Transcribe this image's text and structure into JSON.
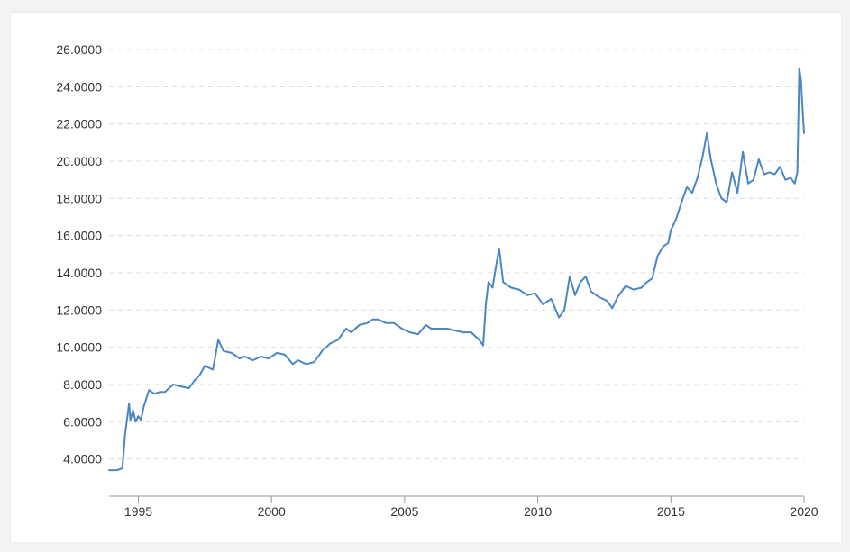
{
  "chart_data": {
    "type": "line",
    "title": "",
    "xlabel": "",
    "ylabel": "",
    "xlim": [
      1993.9,
      2020.0
    ],
    "ylim": [
      2.0,
      26.0
    ],
    "y_ticks": [
      4,
      6,
      8,
      10,
      12,
      14,
      16,
      18,
      20,
      22,
      24,
      26
    ],
    "y_tick_labels": [
      "4.0000",
      "6.0000",
      "8.0000",
      "10.0000",
      "12.0000",
      "14.0000",
      "16.0000",
      "18.0000",
      "20.0000",
      "22.0000",
      "24.0000",
      "26.0000"
    ],
    "x_ticks": [
      1995,
      2000,
      2005,
      2010,
      2015,
      2020
    ],
    "x_tick_labels": [
      "1995",
      "2000",
      "2005",
      "2010",
      "2015",
      "2020"
    ],
    "grid": true,
    "grid_style": "dashed-horizontal",
    "legend": "none",
    "colors": {
      "series": "#4a86c5",
      "grid": "#dcdcdc",
      "axis": "#999999",
      "text": "#333333"
    },
    "series": [
      {
        "x": [
          1993.9,
          1994.2,
          1994.4,
          1994.5,
          1994.65,
          1994.7,
          1994.8,
          1994.9,
          1995.0,
          1995.1,
          1995.2,
          1995.4,
          1995.6,
          1995.8,
          1996.0,
          1996.3,
          1996.6,
          1996.9,
          1997.1,
          1997.3,
          1997.5,
          1997.8,
          1998.0,
          1998.2,
          1998.5,
          1998.8,
          1999.0,
          1999.3,
          1999.6,
          1999.9,
          2000.2,
          2000.5,
          2000.8,
          2001.0,
          2001.3,
          2001.6,
          2001.9,
          2002.2,
          2002.5,
          2002.8,
          2003.0,
          2003.3,
          2003.6,
          2003.8,
          2004.0,
          2004.3,
          2004.6,
          2004.9,
          2005.2,
          2005.5,
          2005.8,
          2006.0,
          2006.3,
          2006.6,
          2006.9,
          2007.2,
          2007.5,
          2007.8,
          2007.95,
          2008.05,
          2008.15,
          2008.3,
          2008.45,
          2008.55,
          2008.7,
          2009.0,
          2009.3,
          2009.6,
          2009.9,
          2010.2,
          2010.5,
          2010.8,
          2011.0,
          2011.2,
          2011.4,
          2011.6,
          2011.8,
          2012.0,
          2012.3,
          2012.6,
          2012.8,
          2013.0,
          2013.3,
          2013.6,
          2013.9,
          2014.1,
          2014.3,
          2014.5,
          2014.7,
          2014.9,
          2015.0,
          2015.2,
          2015.4,
          2015.6,
          2015.8,
          2016.0,
          2016.2,
          2016.35,
          2016.5,
          2016.7,
          2016.9,
          2017.1,
          2017.3,
          2017.5,
          2017.7,
          2017.9,
          2018.1,
          2018.3,
          2018.5,
          2018.7,
          2018.9,
          2019.1,
          2019.3,
          2019.5,
          2019.65,
          2019.75,
          2019.82,
          2019.88,
          2019.93,
          2020.0
        ],
        "y": [
          3.4,
          3.4,
          3.5,
          5.3,
          7.0,
          6.1,
          6.6,
          6.0,
          6.3,
          6.1,
          6.8,
          7.7,
          7.5,
          7.6,
          7.6,
          8.0,
          7.9,
          7.8,
          8.2,
          8.5,
          9.0,
          8.8,
          10.4,
          9.8,
          9.7,
          9.4,
          9.5,
          9.3,
          9.5,
          9.4,
          9.7,
          9.6,
          9.1,
          9.3,
          9.1,
          9.2,
          9.8,
          10.2,
          10.4,
          11.0,
          10.8,
          11.2,
          11.3,
          11.5,
          11.5,
          11.3,
          11.3,
          11.0,
          10.8,
          10.7,
          11.2,
          11.0,
          11.0,
          11.0,
          10.9,
          10.8,
          10.8,
          10.4,
          10.1,
          12.3,
          13.5,
          13.2,
          14.5,
          15.3,
          13.5,
          13.2,
          13.1,
          12.8,
          12.9,
          12.3,
          12.6,
          11.6,
          12.0,
          13.8,
          12.8,
          13.5,
          13.8,
          13.0,
          12.7,
          12.5,
          12.1,
          12.7,
          13.3,
          13.1,
          13.2,
          13.5,
          13.7,
          14.9,
          15.4,
          15.6,
          16.3,
          16.9,
          17.8,
          18.6,
          18.3,
          19.1,
          20.3,
          21.5,
          20.1,
          18.8,
          18.0,
          17.8,
          19.4,
          18.3,
          20.5,
          18.8,
          19.0,
          20.1,
          19.3,
          19.4,
          19.3,
          19.7,
          19.0,
          19.1,
          18.8,
          19.4,
          25.0,
          24.4,
          23.2,
          21.5
        ]
      }
    ]
  }
}
